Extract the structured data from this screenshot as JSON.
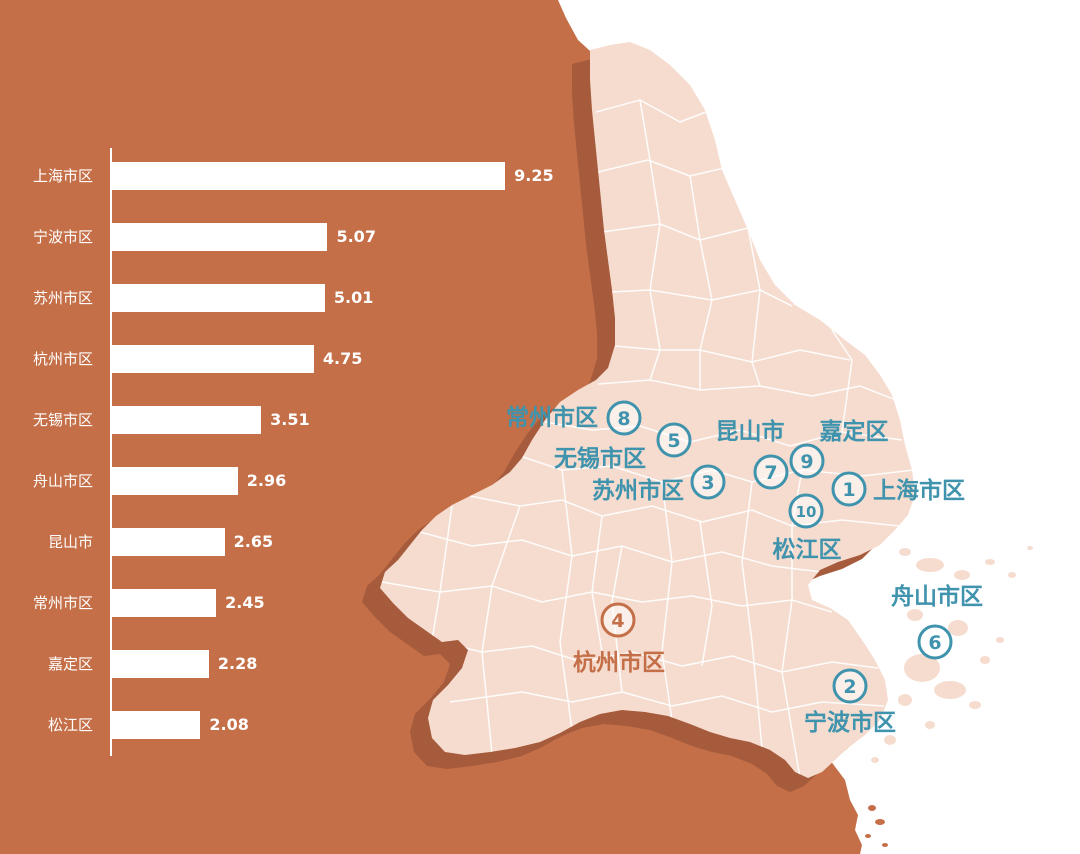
{
  "chart_data": {
    "type": "bar",
    "orientation": "horizontal",
    "categories": [
      "上海市区",
      "宁波市区",
      "苏州市区",
      "杭州市区",
      "无锡市区",
      "舟山市区",
      "昆山市",
      "常州市区",
      "嘉定区",
      "松江区"
    ],
    "values": [
      9.25,
      5.07,
      5.01,
      4.75,
      3.51,
      2.96,
      2.65,
      2.45,
      2.28,
      2.08
    ],
    "grid": false,
    "legend": "none",
    "bar_color": "#FFFFFF"
  },
  "map": {
    "markers": [
      {
        "number": "1",
        "label": "上海市区",
        "color": "#3F93AD"
      },
      {
        "number": "2",
        "label": "宁波市区",
        "color": "#3F93AD"
      },
      {
        "number": "3",
        "label": "苏州市区",
        "color": "#3F93AD"
      },
      {
        "number": "4",
        "label": "杭州市区",
        "color": "#C46F48"
      },
      {
        "number": "5",
        "label": "无锡市区",
        "color": "#3F93AD"
      },
      {
        "number": "6",
        "label": "舟山市区",
        "color": "#3F93AD"
      },
      {
        "number": "7",
        "label": "昆山市",
        "color": "#3F93AD"
      },
      {
        "number": "8",
        "label": "常州市区",
        "color": "#3F93AD"
      },
      {
        "number": "9",
        "label": "嘉定区",
        "color": "#3F93AD"
      },
      {
        "number": "10",
        "label": "松江区",
        "color": "#3F93AD"
      }
    ]
  },
  "colors": {
    "background": "#C46F48",
    "map_fill": "#F5DCCF",
    "map_shadow": "#A65B3C",
    "district_lines": "#FFFFFF",
    "sea": "#FFFFFF"
  }
}
